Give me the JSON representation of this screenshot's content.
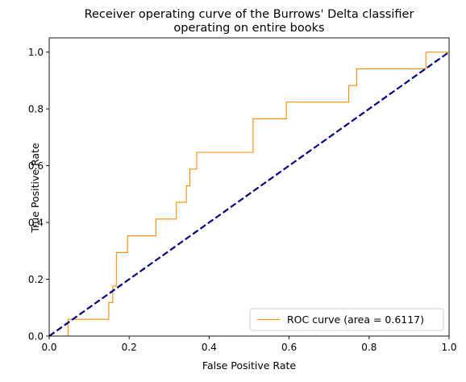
{
  "chart_data": {
    "type": "line",
    "title_lines": [
      "Receiver operating curve of the Burrows' Delta classifier",
      "operating on entire books"
    ],
    "xlabel": "False Positive Rate",
    "ylabel": "True Positive Rate",
    "xlim": [
      0.0,
      1.0
    ],
    "ylim": [
      0.0,
      1.05
    ],
    "x_ticks": [
      0.0,
      0.2,
      0.4,
      0.6,
      0.8,
      1.0
    ],
    "y_ticks": [
      0.0,
      0.2,
      0.4,
      0.6,
      0.8,
      1.0
    ],
    "x_tick_labels": [
      "0.0",
      "0.2",
      "0.4",
      "0.6",
      "0.8",
      "1.0"
    ],
    "y_tick_labels": [
      "0.0",
      "0.2",
      "0.4",
      "0.6",
      "0.8",
      "1.0"
    ],
    "grid": false,
    "legend_position": "lower-right",
    "series": [
      {
        "name": "ROC curve (area = 0.6117)",
        "color": "#ff8c00",
        "style": "solid",
        "x": [
          0.0,
          0.0,
          0.047,
          0.047,
          0.149,
          0.149,
          0.159,
          0.159,
          0.168,
          0.168,
          0.196,
          0.196,
          0.267,
          0.267,
          0.318,
          0.318,
          0.343,
          0.343,
          0.352,
          0.352,
          0.369,
          0.369,
          0.51,
          0.51,
          0.593,
          0.593,
          0.749,
          0.749,
          0.769,
          0.769,
          0.942,
          0.942,
          1.0
        ],
        "y": [
          0.0,
          0.0,
          0.0,
          0.059,
          0.059,
          0.118,
          0.118,
          0.176,
          0.176,
          0.294,
          0.294,
          0.353,
          0.353,
          0.412,
          0.412,
          0.471,
          0.471,
          0.529,
          0.529,
          0.588,
          0.588,
          0.647,
          0.647,
          0.765,
          0.765,
          0.824,
          0.824,
          0.882,
          0.882,
          0.941,
          0.941,
          1.0,
          1.0
        ]
      },
      {
        "name": "",
        "color": "#000080",
        "style": "dashed",
        "x": [
          0.0,
          1.0
        ],
        "y": [
          0.0,
          1.0
        ]
      }
    ]
  }
}
